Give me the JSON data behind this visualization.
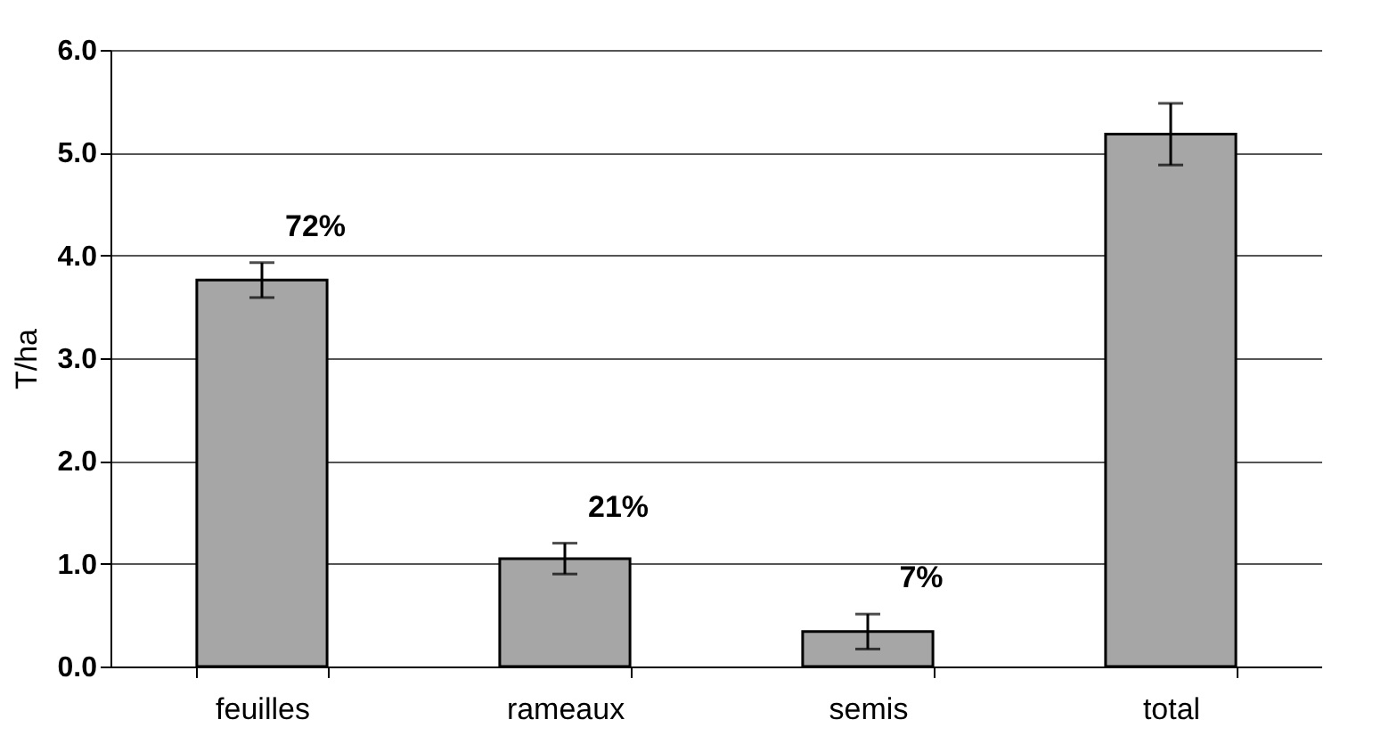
{
  "chart_data": {
    "type": "bar",
    "ylabel": "T/ha",
    "categories": [
      "feuilles",
      "rameaux",
      "semis",
      "total"
    ],
    "values": [
      3.76,
      1.05,
      0.34,
      5.18
    ],
    "errors": [
      0.17,
      0.15,
      0.17,
      0.3
    ],
    "color": "#a6a6a6",
    "ylim": [
      0,
      6
    ],
    "yticks": [
      {
        "value": 0,
        "label": "0.0"
      },
      {
        "value": 1,
        "label": "1.0"
      },
      {
        "value": 2,
        "label": "2.0"
      },
      {
        "value": 3,
        "label": "3.0"
      },
      {
        "value": 4,
        "label": "4.0"
      },
      {
        "value": 5,
        "label": "5.0"
      },
      {
        "value": 6,
        "label": "6.0"
      }
    ],
    "grid": "y",
    "annotations": [
      "72%",
      "21%",
      "7%"
    ]
  }
}
